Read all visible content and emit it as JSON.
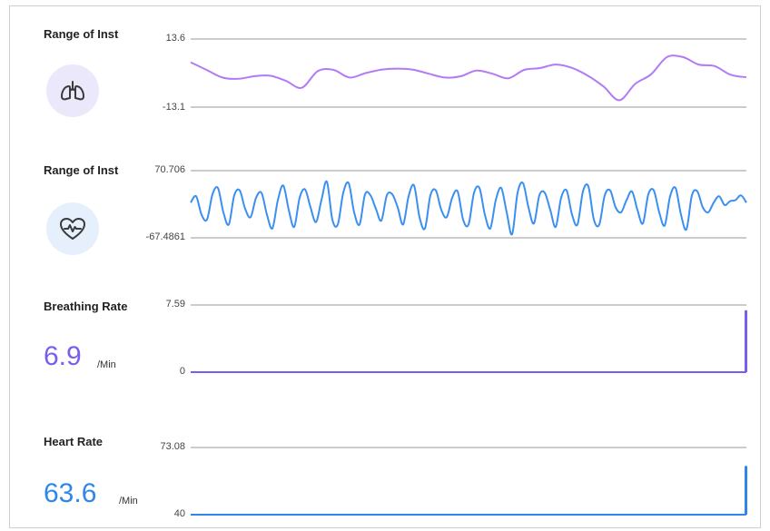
{
  "panels": [
    {
      "title": "Range of Inst",
      "icon": "lungs-icon",
      "ymax_label": "13.6",
      "ymin_label": "-13.1",
      "color": "#b27bf5"
    },
    {
      "title": "Range of Inst",
      "icon": "heart-pulse-icon",
      "ymax_label": "70.706",
      "ymin_label": "-67.4861",
      "color": "#3b8ff0"
    },
    {
      "title": "Breathing Rate",
      "value": "6.9",
      "unit": "/Min",
      "ymax_label": "7.59",
      "ymin_label": "0",
      "color": "#7b5cf0"
    },
    {
      "title": "Heart Rate",
      "value": "63.6",
      "unit": "/Min",
      "ymax_label": "73.08",
      "ymin_label": "40",
      "color": "#2f86ea"
    }
  ],
  "chart_data": [
    {
      "type": "line",
      "title": "Range of Inst",
      "ylim": [
        -13.1,
        13.6
      ],
      "series": [
        {
          "values": [
            4.5,
            1.5,
            -1.5,
            -2,
            -1,
            -0.8,
            -2.8,
            -5.5,
            1,
            1.5,
            -1.5,
            0.2,
            1.6,
            2,
            1.6,
            0,
            -1.5,
            -1,
            1.2,
            0,
            -1.8,
            1.5,
            2.2,
            3.6,
            2.3,
            -0.7,
            -5,
            -10.4,
            -4,
            -0.2,
            6.5,
            6.5,
            3.6,
            3,
            -0.4,
            -1.4
          ]
        }
      ]
    },
    {
      "type": "line",
      "title": "Range of Inst",
      "ylim": [
        -67.4861,
        70.706
      ],
      "series": [
        {
          "values": [
            5,
            18,
            -20,
            -30,
            22,
            35,
            -15,
            -40,
            20,
            30,
            -8,
            -25,
            15,
            25,
            -20,
            -48,
            10,
            40,
            -10,
            -45,
            15,
            32,
            -5,
            -35,
            10,
            48,
            -30,
            -40,
            25,
            45,
            -15,
            -40,
            22,
            20,
            -8,
            -32,
            20,
            22,
            -5,
            -40,
            18,
            40,
            -25,
            -48,
            20,
            30,
            -10,
            -25,
            15,
            28,
            -30,
            -40,
            25,
            35,
            -20,
            -48,
            10,
            35,
            -15,
            -60,
            25,
            45,
            -5,
            -38,
            20,
            25,
            -10,
            -45,
            15,
            30,
            -20,
            -40,
            28,
            38,
            -30,
            -40,
            20,
            30,
            -5,
            -15,
            10,
            28,
            -10,
            -38,
            22,
            30,
            -15,
            -42,
            18,
            35,
            -20,
            -50,
            20,
            28,
            -5,
            -15,
            5,
            18,
            0,
            8,
            10,
            20,
            5
          ]
        }
      ]
    },
    {
      "type": "line",
      "title": "Breathing Rate",
      "ylim": [
        0,
        7.59
      ],
      "series": [
        {
          "values": [
            0,
            0,
            0,
            0,
            0,
            0,
            0,
            0,
            0,
            0,
            0,
            0,
            0,
            0,
            0,
            0,
            0,
            0,
            0,
            0,
            0,
            0,
            0,
            0,
            0,
            0,
            0,
            0,
            0,
            0,
            0,
            0,
            0,
            0,
            0,
            0,
            0,
            0,
            0,
            6.9
          ]
        }
      ]
    },
    {
      "type": "line",
      "title": "Heart Rate",
      "ylim": [
        40,
        73.08
      ],
      "series": [
        {
          "values": [
            40,
            40,
            40,
            40,
            40,
            40,
            40,
            40,
            40,
            40,
            40,
            40,
            40,
            40,
            40,
            40,
            40,
            40,
            40,
            40,
            40,
            40,
            40,
            40,
            40,
            40,
            40,
            40,
            40,
            40,
            40,
            40,
            40,
            40,
            40,
            40,
            40,
            40,
            40,
            63.6
          ]
        }
      ]
    }
  ]
}
